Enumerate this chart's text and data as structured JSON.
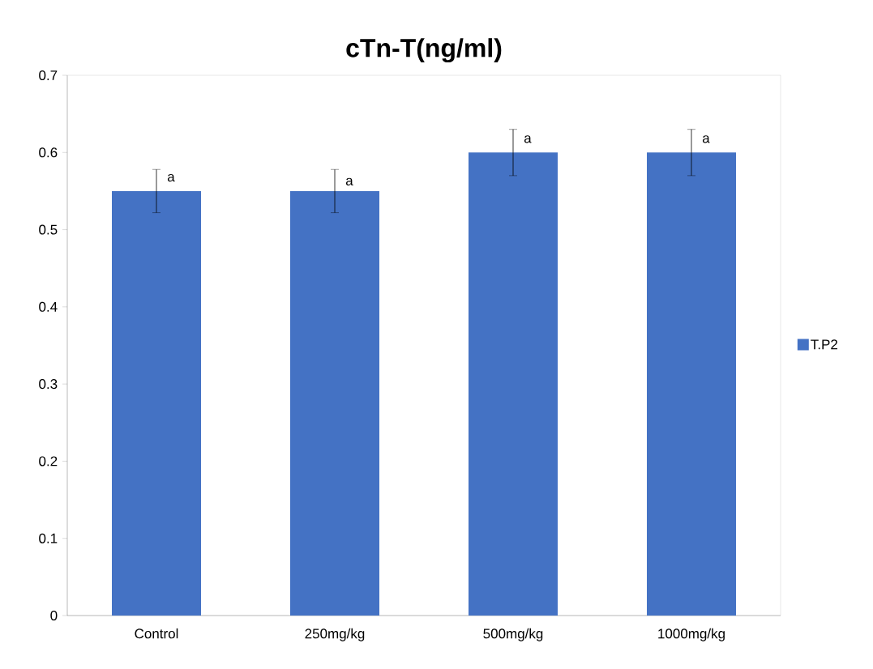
{
  "chart_data": {
    "type": "bar",
    "title": "cTn-T(ng/ml)",
    "categories": [
      "Control",
      "250mg/kg",
      "500mg/kg",
      "1000mg/kg"
    ],
    "series": [
      {
        "name": "T.P2",
        "color": "#4472c4",
        "values": [
          0.55,
          0.55,
          0.6,
          0.6
        ],
        "errors": [
          0.028,
          0.028,
          0.03,
          0.03
        ]
      }
    ],
    "ylim": [
      0,
      0.7
    ],
    "yticks": [
      0,
      0.1,
      0.2,
      0.3,
      0.4,
      0.5,
      0.6,
      0.7
    ],
    "annotations": [
      {
        "text": "a",
        "x": "Control",
        "y": 0.56
      },
      {
        "text": "a",
        "x": "250mg/kg",
        "y": 0.555
      },
      {
        "text": "a",
        "x": "500mg/kg",
        "y": 0.61
      },
      {
        "text": "a",
        "x": "1000mg/kg",
        "y": 0.61
      }
    ],
    "legend": "right",
    "grid": false
  }
}
